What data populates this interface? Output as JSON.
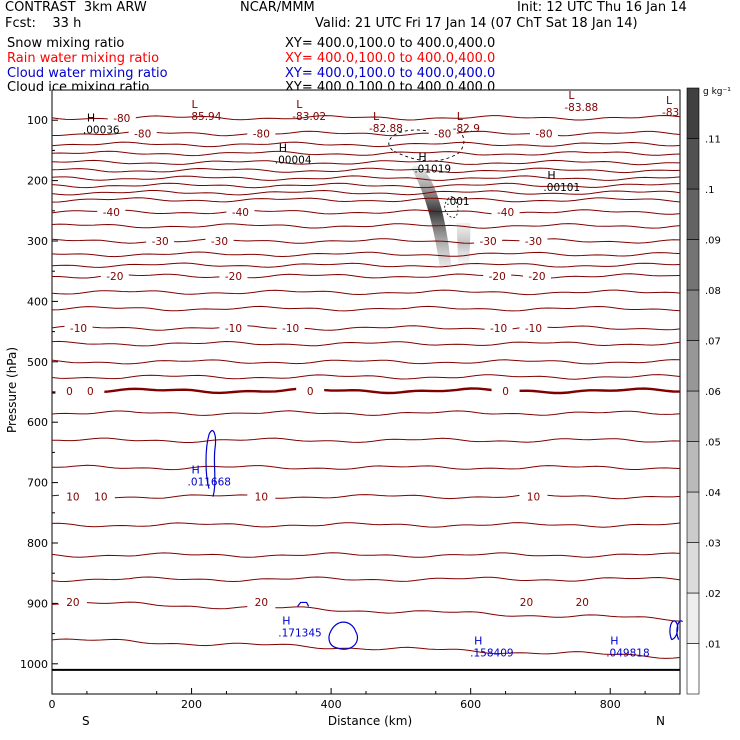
{
  "header": {
    "title": "CONTRAST  3km ARW",
    "org": "NCAR/MMM",
    "init": "Init: 12 UTC Thu 16 Jan 14",
    "fcst": "Fcst:    33 h",
    "valid": "Valid: 21 UTC Fri 17 Jan 14 (07 ChT Sat 18 Jan 14)"
  },
  "legend": [
    {
      "label": "Snow mixing ratio",
      "xy": "XY= 400.0,100.0 to 400.0,400.0",
      "color": "#000000"
    },
    {
      "label": "Rain water mixing ratio",
      "xy": "XY= 400.0,100.0 to 400.0,400.0",
      "color": "#ff0000"
    },
    {
      "label": "Cloud water mixing ratio",
      "xy": "XY= 400.0,100.0 to 400.0,400.0",
      "color": "#0000cc"
    },
    {
      "label": "Cloud ice mixing ratio",
      "xy": "XY= 400.0,100.0 to 400.0,400.0",
      "color": "#000000"
    }
  ],
  "chart_data": {
    "type": "contour",
    "xlabel": "Distance (km)",
    "ylabel": "Pressure (hPa)",
    "xlim": [
      0,
      900
    ],
    "ylim": [
      1050,
      50
    ],
    "x_ticks": [
      0,
      200,
      400,
      600,
      800
    ],
    "y_ticks": [
      100,
      200,
      300,
      400,
      500,
      600,
      700,
      800,
      900,
      1000
    ],
    "x_end_labels": {
      "left": "S",
      "right": "N"
    },
    "temperature_color": "#800000",
    "temperature_contours": [
      {
        "p": 96,
        "labels": [
          {
            "x": 100,
            "t": "-80"
          }
        ]
      },
      {
        "p": 122,
        "labels": [
          {
            "x": 130,
            "t": "-80"
          },
          {
            "x": 300,
            "t": "-80"
          },
          {
            "x": 560,
            "t": "-80"
          },
          {
            "x": 705,
            "t": "-80"
          }
        ]
      },
      {
        "p": 208,
        "labels": []
      },
      {
        "p": 252,
        "labels": [
          {
            "x": 85,
            "t": "-40"
          },
          {
            "x": 270,
            "t": "-40"
          },
          {
            "x": 650,
            "t": "-40"
          }
        ]
      },
      {
        "p": 300,
        "labels": [
          {
            "x": 155,
            "t": "-30"
          },
          {
            "x": 240,
            "t": "-30"
          },
          {
            "x": 625,
            "t": "-30"
          },
          {
            "x": 690,
            "t": "-30"
          }
        ]
      },
      {
        "p": 358,
        "labels": [
          {
            "x": 90,
            "t": "-20"
          },
          {
            "x": 260,
            "t": "-20"
          },
          {
            "x": 638,
            "t": "-20"
          },
          {
            "x": 695,
            "t": "-20"
          }
        ]
      },
      {
        "p": 444,
        "labels": [
          {
            "x": 38,
            "t": "-10"
          },
          {
            "x": 260,
            "t": "-10"
          },
          {
            "x": 342,
            "t": "-10"
          },
          {
            "x": 640,
            "t": "-10"
          },
          {
            "x": 690,
            "t": "-10"
          }
        ]
      },
      {
        "p": 548,
        "labels": [
          {
            "x": 25,
            "t": "0"
          },
          {
            "x": 55,
            "t": "0"
          },
          {
            "x": 370,
            "t": "0"
          },
          {
            "x": 650,
            "t": "0"
          }
        ]
      },
      {
        "p": 723,
        "labels": [
          {
            "x": 30,
            "t": "10"
          },
          {
            "x": 70,
            "t": "10"
          },
          {
            "x": 300,
            "t": "10"
          },
          {
            "x": 690,
            "t": "10"
          }
        ]
      },
      {
        "p": 898,
        "labels": [
          {
            "x": 30,
            "t": "20"
          },
          {
            "x": 300,
            "t": "20"
          },
          {
            "x": 680,
            "t": "20"
          },
          {
            "x": 760,
            "t": "20"
          }
        ]
      }
    ],
    "extrema": [
      {
        "kind": "L",
        "x": 200,
        "p": 80,
        "value": "-85.94",
        "color": "#800000"
      },
      {
        "kind": "L",
        "x": 350,
        "p": 80,
        "value": "-83.02",
        "color": "#800000"
      },
      {
        "kind": "L",
        "x": 460,
        "p": 100,
        "value": "-82.88",
        "color": "#800000"
      },
      {
        "kind": "L",
        "x": 580,
        "p": 100,
        "value": "-82.9",
        "color": "#800000"
      },
      {
        "kind": "L",
        "x": 740,
        "p": 65,
        "value": "-83.88",
        "color": "#800000"
      },
      {
        "kind": "L",
        "x": 880,
        "p": 73,
        "value": "-83",
        "color": "#800000"
      },
      {
        "kind": "H",
        "x": 50,
        "p": 102,
        "value": ".00036",
        "color": "#000000"
      },
      {
        "kind": "H",
        "x": 325,
        "p": 152,
        "value": ".00004",
        "color": "#000000"
      },
      {
        "kind": "H",
        "x": 525,
        "p": 167,
        "value": ".01019",
        "color": "#000000"
      },
      {
        "kind": "H",
        "x": 710,
        "p": 197,
        "value": ".00101",
        "color": "#000000"
      },
      {
        "kind": "H",
        "x": 200,
        "p": 685,
        "value": ".011668",
        "color": "#0000cc"
      },
      {
        "kind": "H",
        "x": 330,
        "p": 935,
        "value": ".171345",
        "color": "#0000cc"
      },
      {
        "kind": "H",
        "x": 605,
        "p": 968,
        "value": ".158409",
        "color": "#0000cc"
      },
      {
        "kind": "H",
        "x": 800,
        "p": 968,
        "value": ".049818",
        "color": "#0000cc"
      }
    ],
    "snow_labels": [
      {
        "x": 565,
        "p": 240,
        "t": ".001"
      }
    ],
    "colorbar": {
      "unit": "g kg⁻¹",
      "ticks": [
        ".01",
        ".02",
        ".03",
        ".04",
        ".05",
        ".06",
        ".07",
        ".08",
        ".09",
        ".1",
        ".11"
      ],
      "bottom_color": "#ffffff",
      "top_color": "#404040"
    }
  }
}
